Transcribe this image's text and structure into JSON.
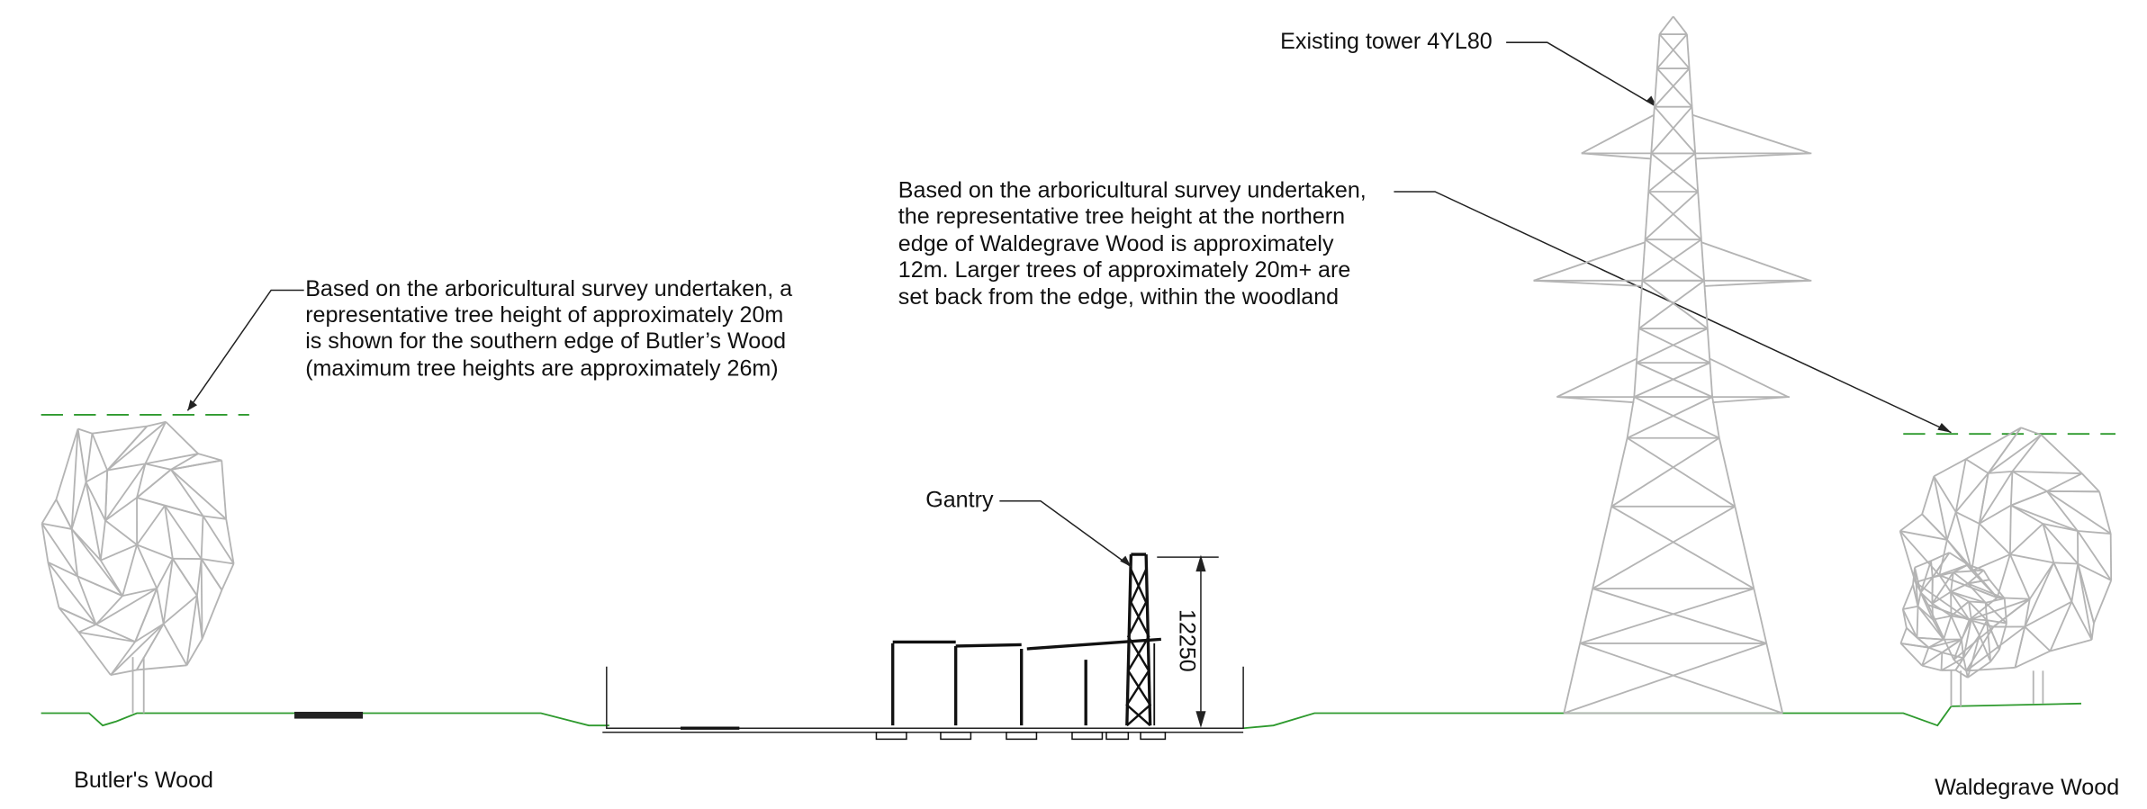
{
  "annotations": {
    "butlers_wood": {
      "lines": [
        "Based on the arboricultural survey undertaken, a",
        "representative tree height of approximately 20m",
        "is shown for the southern edge of Butler’s Wood",
        "(maximum tree heights are approximately 26m)"
      ]
    },
    "waldegrave_wood": {
      "lines": [
        "Based on the arboricultural survey undertaken,",
        "the representative tree height at the northern",
        "edge of Waldegrave Wood is approximately",
        "12m. Larger trees of approximately 20m+ are",
        "set back from the edge, within the woodland"
      ]
    },
    "tower": "Existing tower 4YL80",
    "gantry": "Gantry"
  },
  "dimension": "12250",
  "labels": {
    "left": "Butler's Wood",
    "right": "Waldegrave Wood"
  }
}
